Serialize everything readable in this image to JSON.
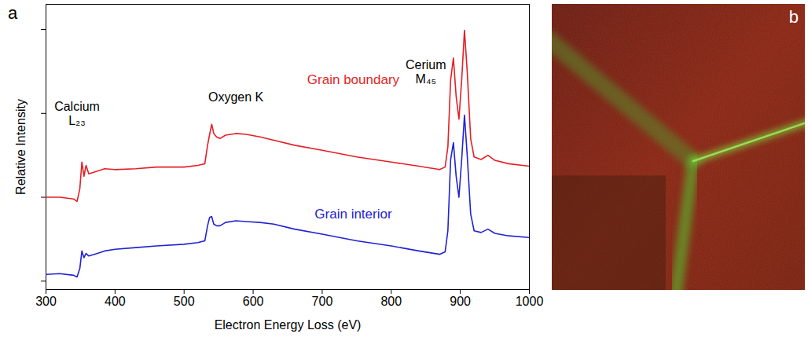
{
  "chart_data": {
    "type": "line",
    "panel_label": "a",
    "xlabel": "Electron Energy Loss (eV)",
    "ylabel": "Relative Intensity",
    "x": [
      300,
      320,
      340,
      345,
      349,
      352,
      355,
      358,
      362,
      370,
      385,
      400,
      430,
      460,
      500,
      520,
      530,
      534,
      537,
      540,
      543,
      547,
      552,
      560,
      575,
      590,
      610,
      630,
      660,
      700,
      750,
      800,
      840,
      870,
      878,
      882,
      886,
      890,
      894,
      898,
      902,
      906,
      910,
      915,
      920,
      930,
      940,
      950,
      970,
      1000
    ],
    "series": [
      {
        "name": "Grain boundary",
        "color": "#e41f26",
        "label_x": 745,
        "label_y": 2.4,
        "values": [
          1.0,
          1.0,
          0.98,
          0.95,
          1.1,
          1.42,
          1.25,
          1.38,
          1.28,
          1.3,
          1.34,
          1.33,
          1.34,
          1.36,
          1.36,
          1.38,
          1.4,
          1.62,
          1.75,
          1.87,
          1.76,
          1.72,
          1.7,
          1.74,
          1.76,
          1.75,
          1.72,
          1.68,
          1.62,
          1.56,
          1.48,
          1.42,
          1.37,
          1.33,
          1.36,
          1.6,
          2.4,
          2.66,
          2.2,
          1.93,
          2.4,
          2.99,
          2.5,
          1.7,
          1.48,
          1.45,
          1.5,
          1.44,
          1.4,
          1.37
        ]
      },
      {
        "name": "Grain interior",
        "color": "#2222d4",
        "label_x": 745,
        "label_y": 0.8,
        "values": [
          0.08,
          0.09,
          0.07,
          0.05,
          0.15,
          0.36,
          0.28,
          0.33,
          0.3,
          0.32,
          0.36,
          0.38,
          0.4,
          0.42,
          0.44,
          0.46,
          0.48,
          0.66,
          0.76,
          0.77,
          0.68,
          0.66,
          0.66,
          0.7,
          0.72,
          0.71,
          0.7,
          0.68,
          0.62,
          0.56,
          0.48,
          0.42,
          0.36,
          0.32,
          0.35,
          0.6,
          1.45,
          1.65,
          1.25,
          1.0,
          1.45,
          1.98,
          1.5,
          0.8,
          0.6,
          0.58,
          0.62,
          0.57,
          0.54,
          0.52
        ]
      }
    ],
    "annotations": [
      {
        "text": "Calcium\nL₂₃",
        "x": 345,
        "y": 2.0
      },
      {
        "text": "Oxygen K",
        "x": 575,
        "y": 2.2
      },
      {
        "text": "Cerium\nM₄₅",
        "x": 850,
        "y": 2.5
      }
    ],
    "xlim": [
      300,
      1000
    ],
    "xticks": [
      300,
      400,
      500,
      600,
      700,
      800,
      900,
      1000
    ],
    "ylim": [
      -0.1,
      3.3
    ],
    "yticks": [
      0,
      1,
      2,
      3
    ],
    "tick_labels": "x"
  },
  "image_panel": {
    "panel_label": "b"
  }
}
